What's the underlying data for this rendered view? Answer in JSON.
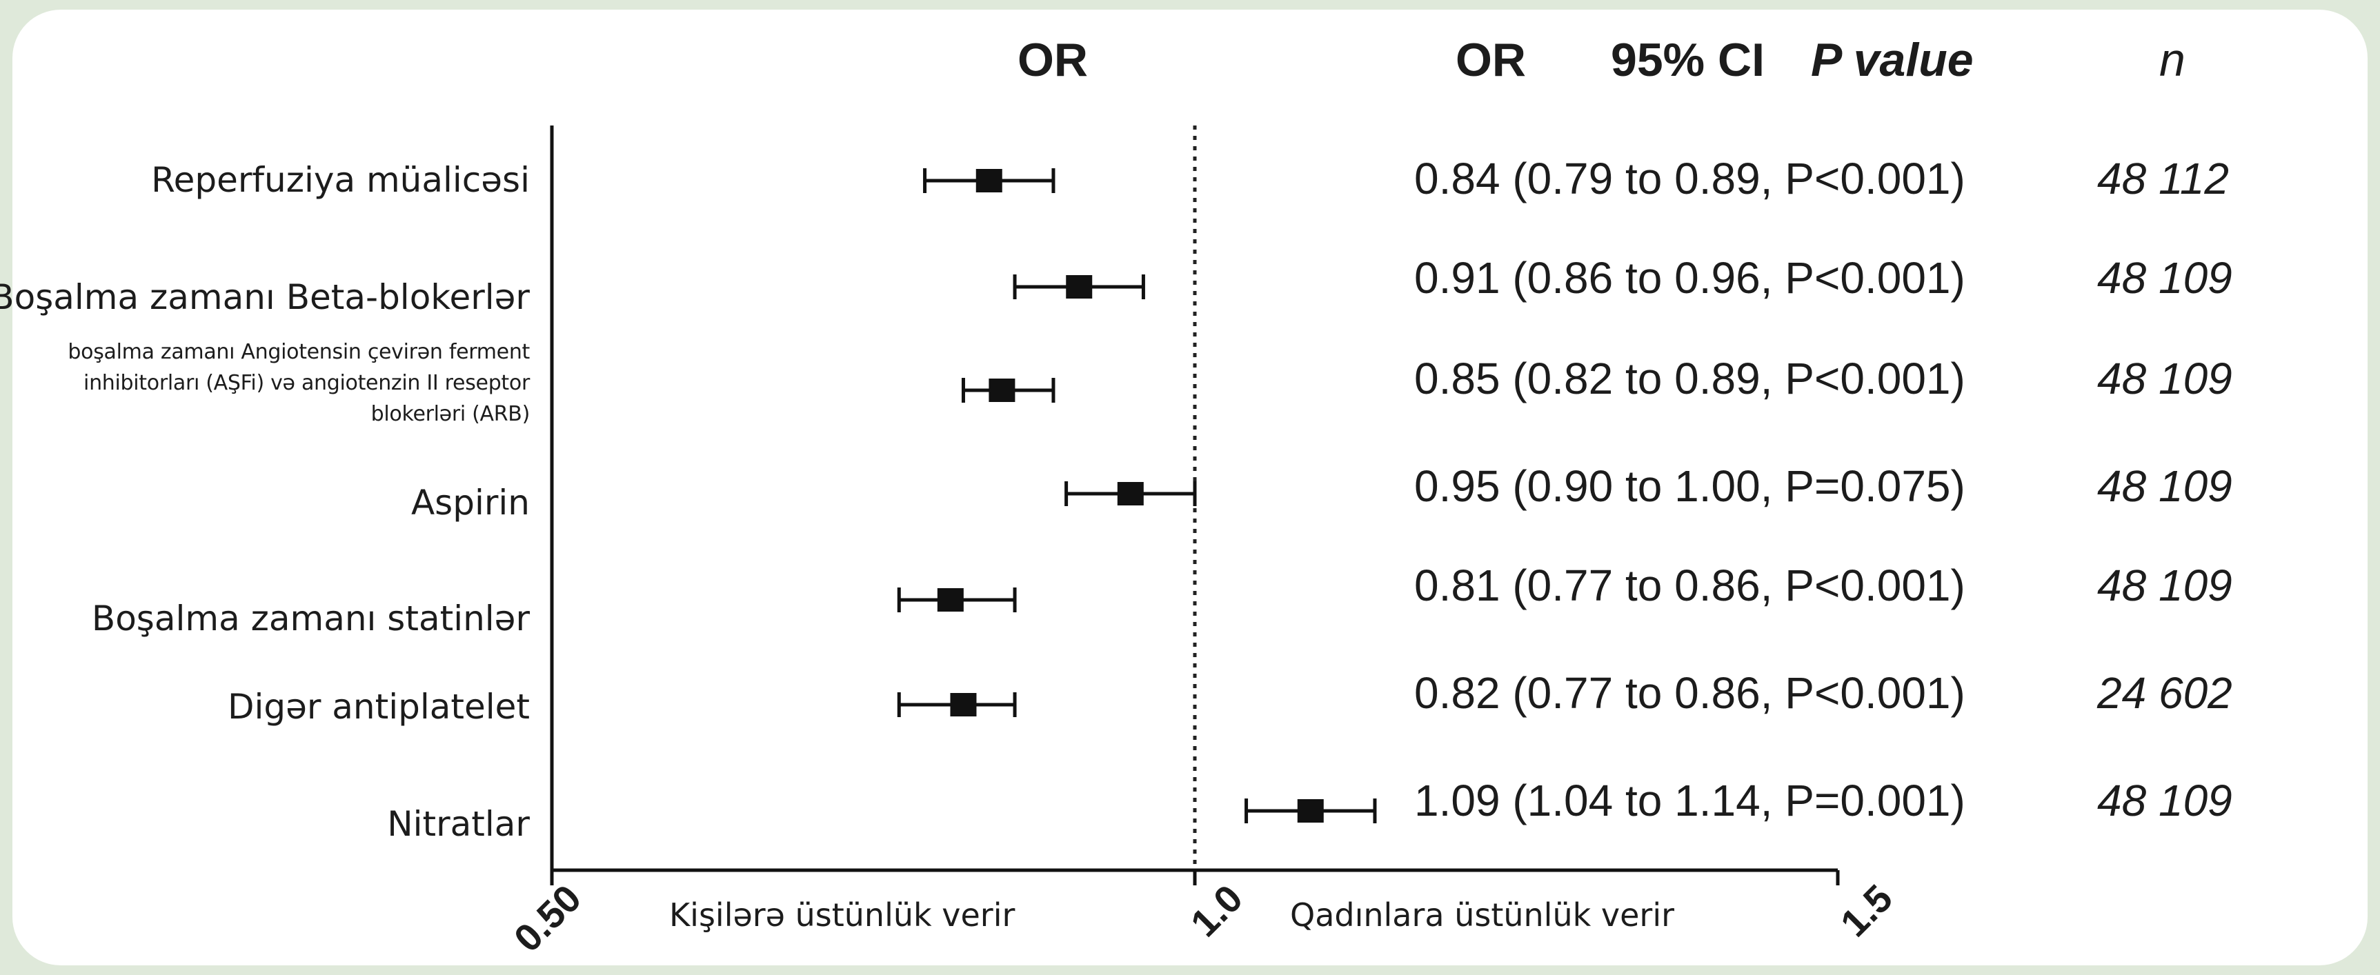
{
  "chart_data": {
    "type": "forest",
    "xlim": [
      0.5,
      1.5
    ],
    "reference_value": 1.0,
    "x_ticks": [
      "0.50",
      "1.0",
      "1.5"
    ],
    "left_favor_label": "Kişilərə üstünlük verir",
    "right_favor_label": "Qadınlara üstünlük verir",
    "header": {
      "plot": "OR",
      "or": "OR",
      "ci": "95% CI",
      "p": "P value",
      "n": "n"
    },
    "rows": [
      {
        "label": "Reperfuziya müalicəsi",
        "or": 0.84,
        "lo": 0.79,
        "hi": 0.89,
        "text": "0.84 (0.79 to 0.89, P<0.001)",
        "n": "48 112"
      },
      {
        "label": "Boşalma zamanı Beta-blokerlər",
        "or": 0.91,
        "lo": 0.86,
        "hi": 0.96,
        "text": "0.91 (0.86 to 0.96, P<0.001)",
        "n": "48 109"
      },
      {
        "label": "boşalma zamanı Angiotensin çevirən ferment inhibitorları (AŞFi) və angiotenzin II reseptor blokerləri (ARB)",
        "or": 0.85,
        "lo": 0.82,
        "hi": 0.89,
        "text": "0.85 (0.82 to 0.89, P<0.001)",
        "n": "48 109"
      },
      {
        "label": "Aspirin",
        "or": 0.95,
        "lo": 0.9,
        "hi": 1.0,
        "text": "0.95 (0.90 to 1.00, P=0.075)",
        "n": "48 109"
      },
      {
        "label": "Boşalma zamanı statinlər",
        "or": 0.81,
        "lo": 0.77,
        "hi": 0.86,
        "text": "0.81 (0.77 to 0.86, P<0.001)",
        "n": "48 109"
      },
      {
        "label": "Digər antiplatelet",
        "or": 0.82,
        "lo": 0.77,
        "hi": 0.86,
        "text": "0.82 (0.77 to 0.86, P<0.001)",
        "n": "24 602"
      },
      {
        "label": "Nitratlar",
        "or": 1.09,
        "lo": 1.04,
        "hi": 1.14,
        "text": "1.09 (1.04 to 1.14, P=0.001)",
        "n": "48 109"
      }
    ]
  }
}
